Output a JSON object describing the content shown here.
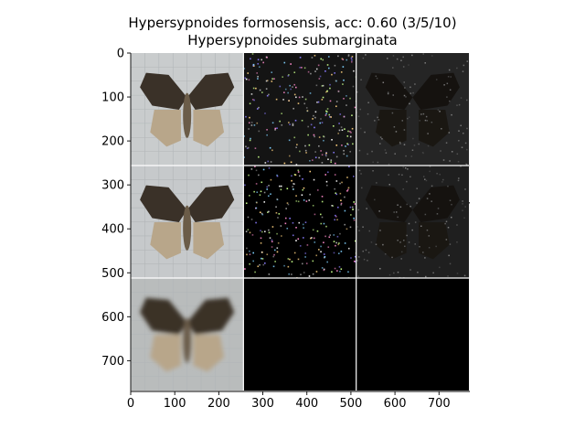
{
  "chart_data": {
    "type": "image-grid",
    "title": "Hypersypnoides formosensis, acc: 0.60 (3/5/10)",
    "subtitle": "Hypersypnoides submarginata",
    "xlim": [
      0,
      770
    ],
    "ylim": [
      770,
      0
    ],
    "x_ticks": [
      0,
      100,
      200,
      300,
      400,
      500,
      600,
      700
    ],
    "y_ticks": [
      0,
      100,
      200,
      300,
      400,
      500,
      600,
      700
    ],
    "grid_rows": 3,
    "grid_cols": 3,
    "cell_size": 256,
    "panels": [
      {
        "row": 0,
        "col": 0,
        "kind": "moth-photo",
        "bg": "#c9cccd"
      },
      {
        "row": 0,
        "col": 1,
        "kind": "saliency-sparse",
        "bg": "#141414"
      },
      {
        "row": 0,
        "col": 2,
        "kind": "saliency-masked",
        "bg": "#252525"
      },
      {
        "row": 1,
        "col": 0,
        "kind": "moth-photo",
        "bg": "#c6c9cb"
      },
      {
        "row": 1,
        "col": 1,
        "kind": "saliency-sparse",
        "bg": "#000000"
      },
      {
        "row": 1,
        "col": 2,
        "kind": "saliency-masked",
        "bg": "#1f1f1f"
      },
      {
        "row": 2,
        "col": 0,
        "kind": "moth-photo-blurred",
        "bg": "#b9bcbc"
      },
      {
        "row": 2,
        "col": 1,
        "kind": "empty",
        "bg": "#000000"
      },
      {
        "row": 2,
        "col": 2,
        "kind": "empty",
        "bg": "#000000"
      }
    ]
  },
  "colors": {
    "separator": "#ffffff",
    "moth_dark": "#3a3128",
    "moth_light": "#b8a68a"
  }
}
